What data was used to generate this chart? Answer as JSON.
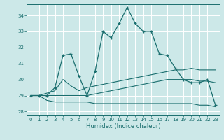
{
  "xlabel": "Humidex (Indice chaleur)",
  "background_color": "#cce8e8",
  "grid_color": "#ffffff",
  "line_color": "#1a6e6e",
  "xlim": [
    -0.5,
    23.5
  ],
  "ylim": [
    27.8,
    34.7
  ],
  "xticks": [
    0,
    1,
    2,
    3,
    4,
    5,
    6,
    7,
    8,
    9,
    10,
    11,
    12,
    13,
    14,
    15,
    16,
    17,
    18,
    19,
    20,
    21,
    22,
    23
  ],
  "yticks": [
    28,
    29,
    30,
    31,
    32,
    33,
    34
  ],
  "line1_x": [
    0,
    1,
    2,
    3,
    4,
    5,
    6,
    7,
    8,
    9,
    10,
    11,
    12,
    13,
    14,
    15,
    16,
    17,
    18,
    19,
    20,
    21,
    22,
    23
  ],
  "line1_y": [
    29.0,
    29.0,
    29.0,
    29.5,
    31.5,
    31.6,
    30.2,
    29.0,
    30.5,
    33.0,
    32.6,
    33.5,
    34.5,
    33.5,
    33.0,
    33.0,
    31.6,
    31.5,
    30.7,
    30.0,
    29.8,
    29.8,
    30.0,
    28.4
  ],
  "line2_x": [
    0,
    1,
    3,
    4,
    5,
    6,
    7,
    8,
    9,
    10,
    11,
    12,
    13,
    14,
    15,
    16,
    17,
    18,
    19,
    20,
    21,
    22,
    23
  ],
  "line2_y": [
    29.0,
    29.0,
    29.3,
    30.0,
    29.6,
    29.3,
    29.5,
    29.6,
    29.7,
    29.8,
    29.9,
    30.0,
    30.1,
    30.2,
    30.3,
    30.4,
    30.5,
    30.6,
    30.6,
    30.7,
    30.6,
    30.6,
    30.6
  ],
  "line3_x": [
    0,
    1,
    2,
    3,
    4,
    5,
    6,
    7,
    8,
    9,
    10,
    11,
    12,
    13,
    14,
    15,
    16,
    17,
    18,
    19,
    20,
    21,
    22,
    23
  ],
  "line3_y": [
    29.0,
    29.0,
    29.0,
    29.0,
    29.0,
    29.0,
    29.0,
    29.0,
    29.1,
    29.2,
    29.3,
    29.4,
    29.5,
    29.6,
    29.7,
    29.8,
    29.9,
    30.0,
    30.0,
    30.0,
    30.0,
    29.9,
    29.9,
    29.8
  ],
  "line4_x": [
    0,
    1,
    2,
    3,
    4,
    5,
    6,
    7,
    8,
    9,
    10,
    11,
    12,
    13,
    14,
    15,
    16,
    17,
    18,
    19,
    20,
    21,
    22,
    23
  ],
  "line4_y": [
    29.0,
    29.0,
    28.7,
    28.6,
    28.6,
    28.6,
    28.6,
    28.6,
    28.5,
    28.5,
    28.5,
    28.5,
    28.5,
    28.5,
    28.5,
    28.5,
    28.5,
    28.5,
    28.5,
    28.5,
    28.5,
    28.4,
    28.4,
    28.3
  ]
}
